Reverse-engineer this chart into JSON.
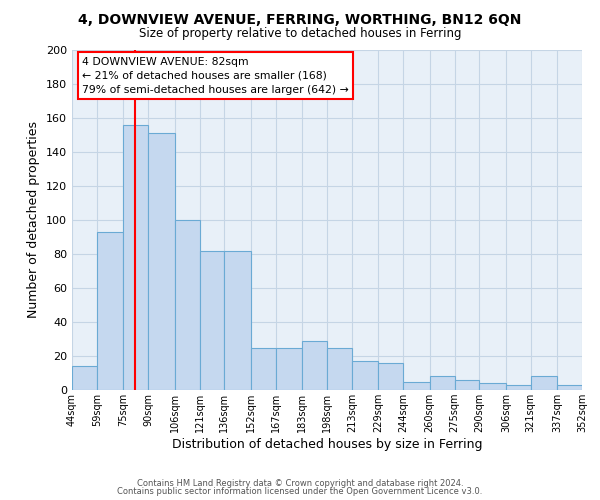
{
  "title": "4, DOWNVIEW AVENUE, FERRING, WORTHING, BN12 6QN",
  "subtitle": "Size of property relative to detached houses in Ferring",
  "xlabel": "Distribution of detached houses by size in Ferring",
  "ylabel": "Number of detached properties",
  "bin_labels": [
    "44sqm",
    "59sqm",
    "75sqm",
    "90sqm",
    "106sqm",
    "121sqm",
    "136sqm",
    "152sqm",
    "167sqm",
    "183sqm",
    "198sqm",
    "213sqm",
    "229sqm",
    "244sqm",
    "260sqm",
    "275sqm",
    "290sqm",
    "306sqm",
    "321sqm",
    "337sqm",
    "352sqm"
  ],
  "bar_values": [
    14,
    93,
    156,
    151,
    100,
    82,
    82,
    25,
    25,
    29,
    25,
    17,
    16,
    5,
    8,
    6,
    4,
    3,
    8,
    3
  ],
  "bin_edges": [
    44,
    59,
    75,
    90,
    106,
    121,
    136,
    152,
    167,
    183,
    198,
    213,
    229,
    244,
    260,
    275,
    290,
    306,
    321,
    337,
    352
  ],
  "bar_color": "#c5d8ef",
  "bar_edge_color": "#6aaad4",
  "red_line_x": 82,
  "annotation_line1": "4 DOWNVIEW AVENUE: 82sqm",
  "annotation_line2": "← 21% of detached houses are smaller (168)",
  "annotation_line3": "79% of semi-detached houses are larger (642) →",
  "ylim": [
    0,
    200
  ],
  "yticks": [
    0,
    20,
    40,
    60,
    80,
    100,
    120,
    140,
    160,
    180,
    200
  ],
  "footer_line1": "Contains HM Land Registry data © Crown copyright and database right 2024.",
  "footer_line2": "Contains public sector information licensed under the Open Government Licence v3.0.",
  "bg_color": "#ffffff",
  "plot_bg_color": "#e8f0f8",
  "grid_color": "#c5d5e5"
}
